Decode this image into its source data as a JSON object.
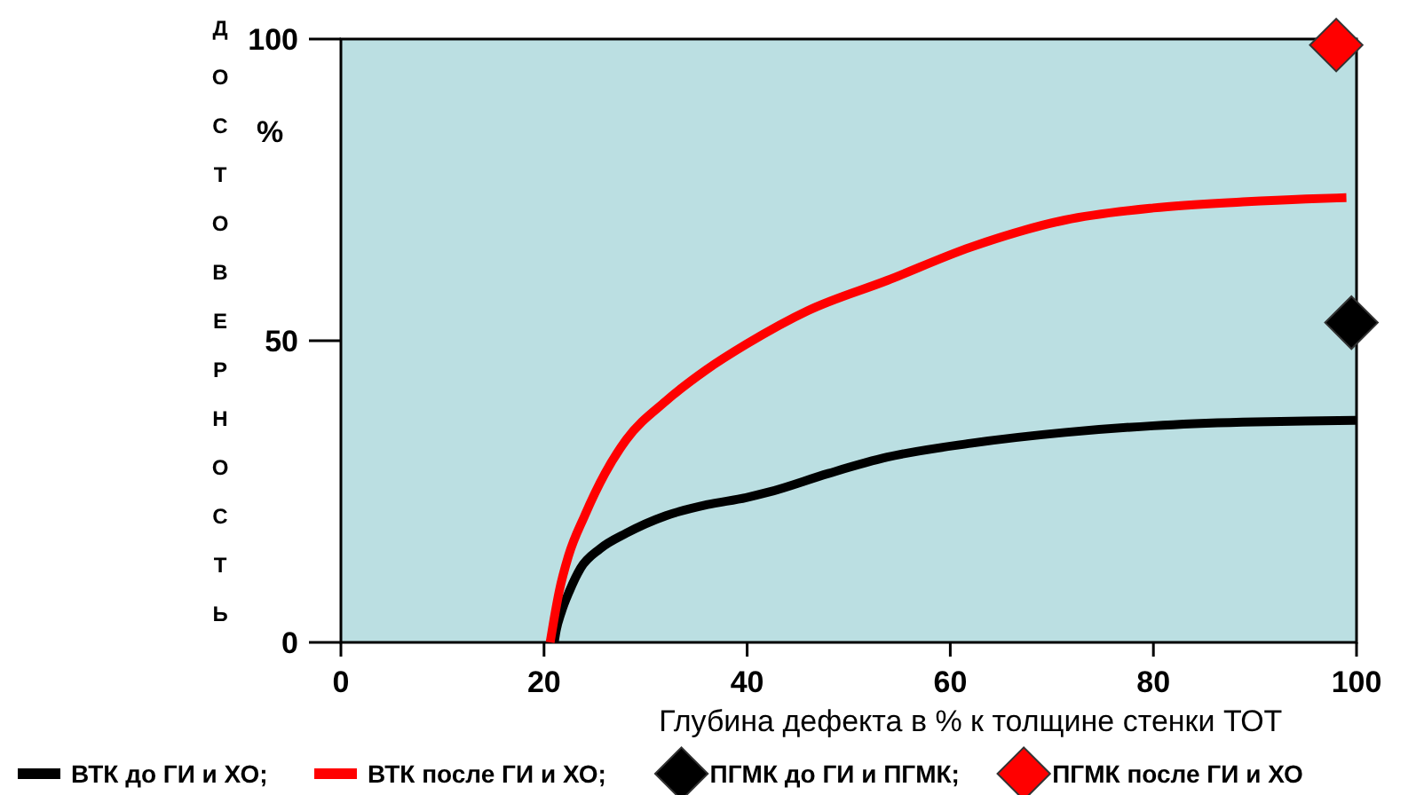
{
  "chart_data": {
    "type": "line",
    "xlabel": "Глубина дефекта в % к толщине стенки ТОТ",
    "ylabel": "ДОСТОВЕРНОСТЬ",
    "annotations": [
      "%"
    ],
    "xlim": [
      0,
      100
    ],
    "ylim": [
      0,
      100
    ],
    "xticks": [
      0,
      20,
      40,
      60,
      80,
      100
    ],
    "yticks": [
      0,
      50,
      100
    ],
    "grid": false,
    "legend": "bottom",
    "marker": "none",
    "line_style": "solid",
    "series": [
      {
        "name": "ВТК до ГИ и ХО;",
        "color": "#000000",
        "x": [
          21,
          21.2,
          21.7,
          22.5,
          23.6,
          25.5,
          28.1,
          32,
          36,
          39.9,
          42.1,
          48,
          53.8,
          62,
          71.3,
          80,
          88.8,
          95,
          100
        ],
        "values": [
          0,
          2,
          5,
          8.5,
          12.3,
          15.5,
          18.1,
          21,
          22.8,
          24,
          24.9,
          28,
          30.7,
          33,
          34.8,
          35.9,
          36.5,
          36.7,
          36.8
        ]
      },
      {
        "name": "ВТК после ГИ и ХО;",
        "color": "#ff0000",
        "x": [
          20.6,
          21,
          21.5,
          22.4,
          24,
          26,
          28.1,
          32,
          36,
          39.9,
          46,
          53.8,
          62,
          71.3,
          80,
          88.8,
          95,
          99
        ],
        "values": [
          0,
          4,
          8.5,
          14.3,
          21,
          28,
          33.6,
          40,
          45.2,
          49.4,
          55,
          60,
          65.5,
          70,
          72,
          73,
          73.5,
          73.7
        ]
      },
      {
        "name": "ПГМК до ГИ и ПГМК;",
        "type": "scatter",
        "marker": "diamond",
        "color": "#000000",
        "x": [
          99.5
        ],
        "values": [
          53
        ]
      },
      {
        "name": "ПГМК после ГИ и ХО",
        "type": "scatter",
        "marker": "diamond",
        "color": "#ff0000",
        "x": [
          98
        ],
        "values": [
          99
        ]
      }
    ]
  }
}
